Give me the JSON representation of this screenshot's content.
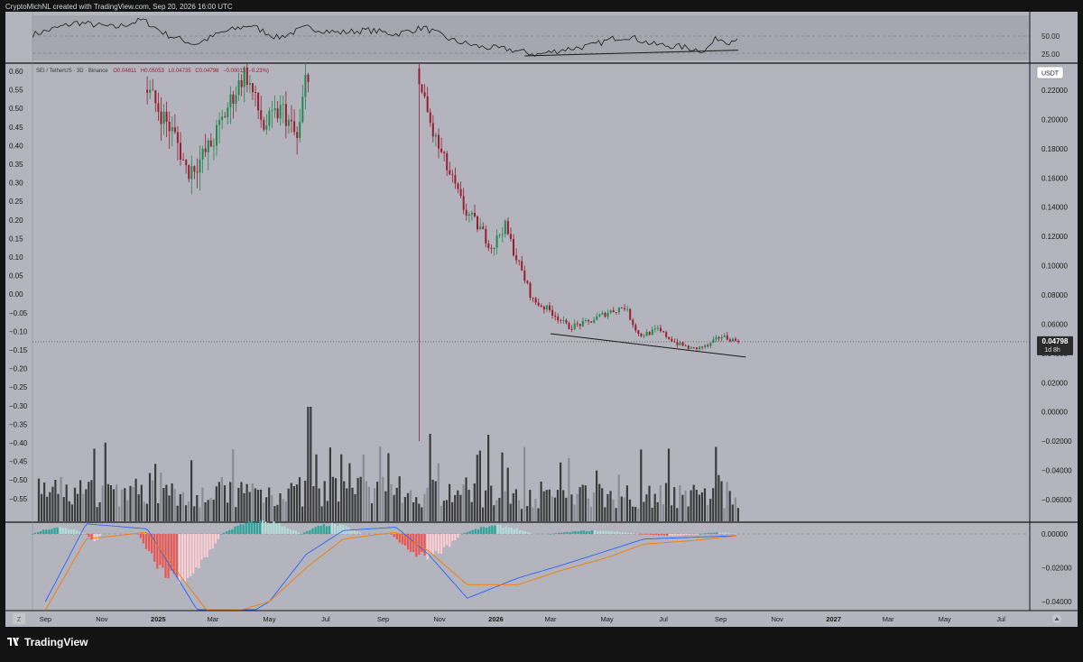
{
  "header": {
    "credit": "CryptoMichNL created with TradingView.com, Sep 20, 2026 16:00 UTC"
  },
  "footer": {
    "brand": "TradingView"
  },
  "rsi_panel": {
    "levels": [
      "50.00",
      "25.00"
    ]
  },
  "price_panel": {
    "legend": {
      "symbol": "SEI / TetherUS · 3D · Binance",
      "open": "O0.04811",
      "high": "H0.05053",
      "low": "L0.04735",
      "close": "C0.04798",
      "change": "−0.00011 (−0.23%)"
    },
    "currency_badge": "USDT",
    "last_price": "0.04798",
    "countdown": "1d 8h",
    "left_axis_ticks": [
      "0.60",
      "0.55",
      "0.50",
      "0.45",
      "0.40",
      "0.35",
      "0.30",
      "0.25",
      "0.20",
      "0.15",
      "0.10",
      "0.05",
      "0.00",
      "−0.05",
      "−0.10",
      "−0.15",
      "−0.20",
      "−0.25",
      "−0.30",
      "−0.35",
      "−0.40",
      "−0.45",
      "−0.50",
      "−0.55"
    ],
    "right_axis_ticks": [
      "0.22000",
      "0.20000",
      "0.18000",
      "0.16000",
      "0.14000",
      "0.12000",
      "0.10000",
      "0.08000",
      "0.06000",
      "0.04000",
      "0.02000",
      "0.00000",
      "−0.02000",
      "−0.04000",
      "−0.06000"
    ]
  },
  "macd_panel": {
    "right_axis_ticks": [
      "0.00000",
      "−0.02000",
      "−0.04000"
    ]
  },
  "time_axis": {
    "labels": [
      "Sep",
      "Nov",
      "2025",
      "Mar",
      "May",
      "Jul",
      "Sep",
      "Nov",
      "2026",
      "Mar",
      "May",
      "Jul",
      "Sep",
      "Nov",
      "2027",
      "Mar",
      "May",
      "Jul"
    ],
    "bold_labels": [
      "2025",
      "2026",
      "2027"
    ]
  },
  "colors": {
    "background": "#b3b4bd",
    "frame": "#131313",
    "up_candle": "#1e8a4c",
    "down_candle": "#9b1c2e",
    "rsi_line": "#1a1a1a",
    "macd_line": "#2962ff",
    "signal_line": "#f57c00",
    "hist_pos": "#26a69a",
    "hist_neg": "#ef5350",
    "volume": "#3b3b3b"
  },
  "chart_data": {
    "type": "candlestick",
    "symbol": "SEI / TetherUS",
    "interval": "3D",
    "exchange": "Binance",
    "x_range": [
      "2024-08-18",
      "2027-08-01"
    ],
    "y_range_right": [
      -0.07,
      0.235
    ],
    "last_close": 0.04798,
    "price_path": [
      {
        "date": "2024-12-20",
        "close": 0.55,
        "low": 0.43
      },
      {
        "date": "2025-01-01",
        "close": 0.5,
        "low": 0.4
      },
      {
        "date": "2025-01-20",
        "close": 0.42,
        "low": 0.36
      },
      {
        "date": "2025-02-01",
        "close": 0.33,
        "low": 0.31
      },
      {
        "date": "2025-02-15",
        "close": 0.36,
        "low": 0.31
      },
      {
        "date": "2025-03-01",
        "close": 0.41,
        "low": 0.36
      },
      {
        "date": "2025-03-20",
        "close": 0.52,
        "low": 0.44
      },
      {
        "date": "2025-04-05",
        "close": 0.6,
        "low": 0.5
      },
      {
        "date": "2025-04-25",
        "close": 0.45,
        "low": 0.35
      },
      {
        "date": "2025-05-15",
        "close": 0.5,
        "low": 0.4
      },
      {
        "date": "2025-06-01",
        "close": 0.41,
        "low": 0.32
      },
      {
        "date": "2025-06-10",
        "close": 0.6,
        "low": 0.4
      },
      {
        "date": "2025-10-10",
        "close": 0.224,
        "low": -0.02
      },
      {
        "date": "2025-10-25",
        "close": 0.19,
        "low": 0.175
      },
      {
        "date": "2025-11-10",
        "close": 0.165,
        "low": 0.155
      },
      {
        "date": "2025-11-28",
        "close": 0.138,
        "low": 0.13
      },
      {
        "date": "2025-12-15",
        "close": 0.125,
        "low": 0.118
      },
      {
        "date": "2025-12-28",
        "close": 0.112,
        "low": 0.106
      },
      {
        "date": "2026-01-10",
        "close": 0.128,
        "low": 0.11
      },
      {
        "date": "2026-01-25",
        "close": 0.102,
        "low": 0.095
      },
      {
        "date": "2026-02-10",
        "close": 0.076,
        "low": 0.071
      },
      {
        "date": "2026-03-01",
        "close": 0.069,
        "low": 0.065
      },
      {
        "date": "2026-03-20",
        "close": 0.058,
        "low": 0.053
      },
      {
        "date": "2026-04-10",
        "close": 0.061,
        "low": 0.057
      },
      {
        "date": "2026-05-01",
        "close": 0.068,
        "low": 0.058
      },
      {
        "date": "2026-05-20",
        "close": 0.072,
        "low": 0.063
      },
      {
        "date": "2026-06-05",
        "close": 0.052,
        "low": 0.047
      },
      {
        "date": "2026-06-25",
        "close": 0.056,
        "low": 0.051
      },
      {
        "date": "2026-07-15",
        "close": 0.047,
        "low": 0.044
      },
      {
        "date": "2026-08-01",
        "close": 0.043,
        "low": 0.04
      },
      {
        "date": "2026-08-18",
        "close": 0.045,
        "low": 0.041
      },
      {
        "date": "2026-09-01",
        "close": 0.052,
        "low": 0.046
      },
      {
        "date": "2026-09-20",
        "close": 0.04798,
        "low": 0.04735
      }
    ],
    "price_trendline": [
      {
        "date": "2026-03-01",
        "price": 0.0535
      },
      {
        "date": "2026-09-28",
        "price": 0.0375
      }
    ],
    "rsi": {
      "levels": [
        50,
        25
      ],
      "path": [
        {
          "date": "2024-08-18",
          "value": 55
        },
        {
          "date": "2024-10-05",
          "value": 74
        },
        {
          "date": "2024-11-15",
          "value": 66
        },
        {
          "date": "2024-12-15",
          "value": 78
        },
        {
          "date": "2025-01-10",
          "value": 55
        },
        {
          "date": "2025-02-10",
          "value": 40
        },
        {
          "date": "2025-03-10",
          "value": 58
        },
        {
          "date": "2025-04-10",
          "value": 70
        },
        {
          "date": "2025-05-10",
          "value": 50
        },
        {
          "date": "2025-06-10",
          "value": 66
        },
        {
          "date": "2025-07-15",
          "value": 58
        },
        {
          "date": "2025-08-15",
          "value": 62
        },
        {
          "date": "2025-09-15",
          "value": 56
        },
        {
          "date": "2025-10-15",
          "value": 66
        },
        {
          "date": "2025-11-15",
          "value": 46
        },
        {
          "date": "2025-12-15",
          "value": 36
        },
        {
          "date": "2026-01-15",
          "value": 32
        },
        {
          "date": "2026-02-15",
          "value": 24
        },
        {
          "date": "2026-03-15",
          "value": 32
        },
        {
          "date": "2026-04-15",
          "value": 38
        },
        {
          "date": "2026-05-10",
          "value": 50
        },
        {
          "date": "2026-05-25",
          "value": 52
        },
        {
          "date": "2026-06-20",
          "value": 40
        },
        {
          "date": "2026-07-20",
          "value": 36
        },
        {
          "date": "2026-08-15",
          "value": 30
        },
        {
          "date": "2026-08-28",
          "value": 50
        },
        {
          "date": "2026-09-10",
          "value": 44
        },
        {
          "date": "2026-09-20",
          "value": 52
        }
      ],
      "trendline": [
        {
          "date": "2026-02-01",
          "value": 22
        },
        {
          "date": "2026-09-20",
          "value": 31
        }
      ]
    },
    "macd": {
      "hist_phases": [
        {
          "from": "2024-08-18",
          "to": "2024-10-15",
          "sign": "positive",
          "peak": 0.004
        },
        {
          "from": "2024-10-15",
          "to": "2024-11-01",
          "sign": "negative",
          "peak": -0.004
        },
        {
          "from": "2024-12-10",
          "to": "2025-03-10",
          "sign": "negative",
          "peak": -0.028
        },
        {
          "from": "2025-03-10",
          "to": "2025-06-05",
          "sign": "positive",
          "peak": 0.008
        },
        {
          "from": "2025-06-05",
          "to": "2025-08-10",
          "sign": "positive",
          "peak": 0.006
        },
        {
          "from": "2025-09-10",
          "to": "2025-11-25",
          "sign": "negative",
          "peak": -0.014
        },
        {
          "from": "2025-11-25",
          "to": "2026-02-10",
          "sign": "positive",
          "peak": 0.005
        },
        {
          "from": "2026-03-01",
          "to": "2026-06-05",
          "sign": "positive",
          "peak": 0.002
        },
        {
          "from": "2026-06-05",
          "to": "2026-08-10",
          "sign": "negative",
          "peak": -0.001
        },
        {
          "from": "2026-08-10",
          "to": "2026-09-20",
          "sign": "positive",
          "peak": 0.001
        }
      ],
      "macd_line": [
        {
          "date": "2024-09-01",
          "value": -0.04
        },
        {
          "date": "2024-10-15",
          "value": 0.006
        },
        {
          "date": "2024-12-20",
          "value": 0.003
        },
        {
          "date": "2025-03-01",
          "value": -0.06
        },
        {
          "date": "2025-05-01",
          "value": -0.04
        },
        {
          "date": "2025-06-10",
          "value": -0.012
        },
        {
          "date": "2025-07-20",
          "value": 0.002
        },
        {
          "date": "2025-09-15",
          "value": 0.004
        },
        {
          "date": "2025-10-20",
          "value": -0.012
        },
        {
          "date": "2025-12-01",
          "value": -0.038
        },
        {
          "date": "2026-01-25",
          "value": -0.026
        },
        {
          "date": "2026-03-10",
          "value": -0.019
        },
        {
          "date": "2026-05-01",
          "value": -0.01
        },
        {
          "date": "2026-06-10",
          "value": -0.003
        },
        {
          "date": "2026-08-01",
          "value": -0.002
        },
        {
          "date": "2026-09-20",
          "value": -0.001
        }
      ],
      "signal_line": [
        {
          "date": "2024-09-01",
          "value": -0.045
        },
        {
          "date": "2024-10-15",
          "value": -0.003
        },
        {
          "date": "2024-12-20",
          "value": 0.001
        },
        {
          "date": "2025-03-01",
          "value": -0.05
        },
        {
          "date": "2025-05-01",
          "value": -0.04
        },
        {
          "date": "2025-06-10",
          "value": -0.02
        },
        {
          "date": "2025-07-20",
          "value": -0.003
        },
        {
          "date": "2025-09-15",
          "value": 0.001
        },
        {
          "date": "2025-10-20",
          "value": -0.01
        },
        {
          "date": "2025-12-01",
          "value": -0.03
        },
        {
          "date": "2026-01-25",
          "value": -0.03
        },
        {
          "date": "2026-03-10",
          "value": -0.022
        },
        {
          "date": "2026-05-01",
          "value": -0.014
        },
        {
          "date": "2026-06-10",
          "value": -0.006
        },
        {
          "date": "2026-08-01",
          "value": -0.004
        },
        {
          "date": "2026-09-20",
          "value": -0.001
        }
      ]
    }
  }
}
